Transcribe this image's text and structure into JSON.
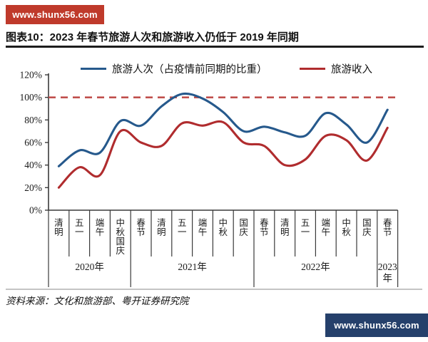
{
  "watermarks": {
    "top": "www.shunx56.com",
    "bottom": "www.shunx56.com"
  },
  "title": "图表10：2023 年春节旅游人次和旅游收入仍低于 2019 年同期",
  "legend": {
    "series1": "旅游人次（占疫情前同期的比重）",
    "series2": "旅游收入"
  },
  "source": "资料来源：文化和旅游部、粤开证券研究院",
  "colors": {
    "trips_line": "#26598c",
    "revenue_line": "#b02c2e",
    "reference_line": "#c0504d",
    "axis": "#3a3a3a",
    "banner_top_bg": "#bf3a2b",
    "banner_bottom_bg": "#25406b",
    "text": "#1a1a1a"
  },
  "chart_data": {
    "type": "line",
    "title": "",
    "xlabel": "",
    "ylabel": "",
    "ylim": [
      0,
      120
    ],
    "yticks": [
      "0%",
      "20%",
      "40%",
      "60%",
      "80%",
      "100%",
      "120%"
    ],
    "ytick_step": 20,
    "grid": false,
    "legend_position": "top",
    "reference_line_value": 100,
    "categories": [
      "清明",
      "五一",
      "端午",
      "中秋国庆",
      "春节",
      "清明",
      "五一",
      "端午",
      "中秋",
      "国庆",
      "春节",
      "清明",
      "五一",
      "端午",
      "中秋",
      "国庆",
      "春节"
    ],
    "year_groups": [
      {
        "label": "2020年",
        "span": 4
      },
      {
        "label": "2021年",
        "span": 6
      },
      {
        "label": "2022年",
        "span": 6
      },
      {
        "label": "2023年",
        "span": 1
      }
    ],
    "series": [
      {
        "name": "旅游人次（占疫情前同期的比重）",
        "unit": "%",
        "values": [
          39,
          53,
          51,
          79,
          75,
          92,
          103,
          99,
          87,
          70,
          74,
          69,
          66,
          86,
          76,
          60,
          89
        ]
      },
      {
        "name": "旅游收入",
        "unit": "%",
        "values": [
          20,
          38,
          31,
          70,
          60,
          57,
          77,
          75,
          78,
          60,
          57,
          40,
          45,
          66,
          62,
          44,
          73
        ]
      }
    ]
  }
}
